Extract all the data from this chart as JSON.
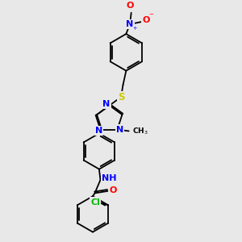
{
  "bg_color": "#e8e8e8",
  "bond_color": "#000000",
  "atom_colors": {
    "N": "#0000ff",
    "O": "#ff0000",
    "S": "#cccc00",
    "Cl": "#00bb00",
    "C": "#000000",
    "H": "#000000"
  },
  "figsize": [
    3.0,
    3.0
  ],
  "dpi": 100
}
